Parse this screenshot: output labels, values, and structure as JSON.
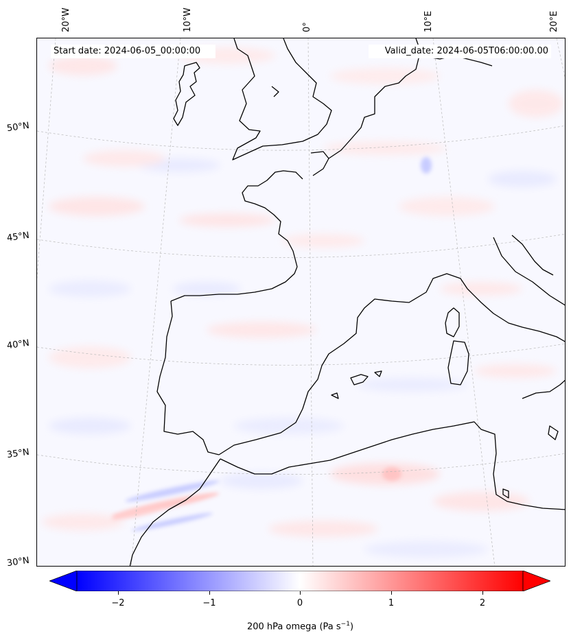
{
  "map": {
    "start_date": "Start date: 2024-06-05_00:00:00",
    "valid_date": "Valid_date: 2024-06-05T06:00:00.00",
    "lon_labels": [
      "20°W",
      "10°W",
      "0°",
      "10°E",
      "20°E"
    ],
    "lat_labels": [
      "50°N",
      "45°N",
      "40°N",
      "35°N",
      "30°N"
    ],
    "field": "200 hPa omega",
    "colormap": [
      "#0000ff",
      "#ffffff",
      "#ff0000"
    ]
  },
  "colorbar": {
    "label_prefix": "200 hPa omega (Pa s",
    "label_exp": "−1",
    "label_suffix": ")",
    "min": -2.5,
    "max": 2.5,
    "ticks": [
      "−2",
      "−1",
      "0",
      "1",
      "2"
    ],
    "tick_values": [
      -2,
      -1,
      0,
      1,
      2
    ],
    "extend": "both"
  }
}
